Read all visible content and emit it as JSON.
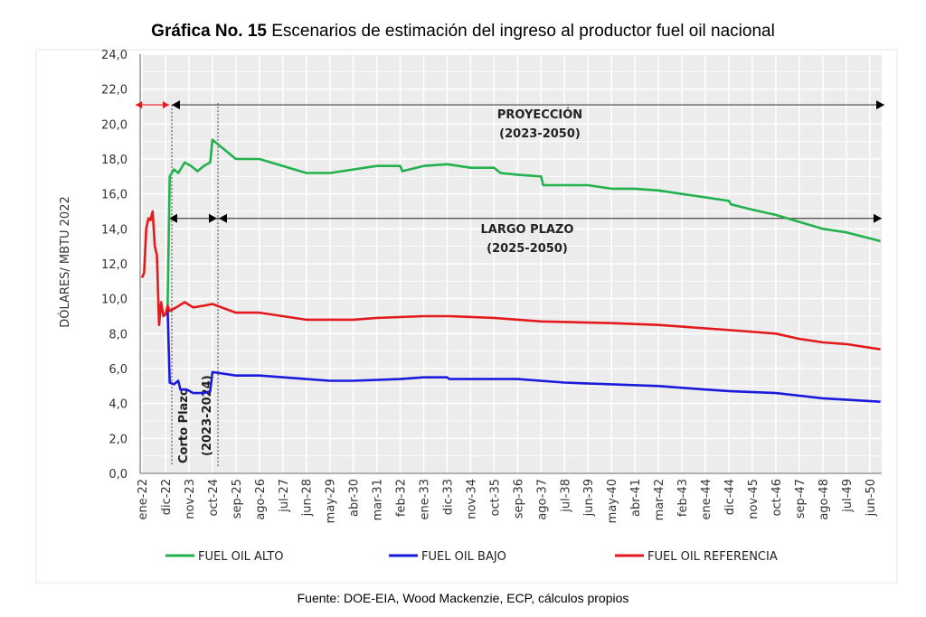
{
  "title_bold": "Gráfica No. 15",
  "title_rest": " Escenarios de estimación del ingreso al productor fuel oil nacional",
  "footer": "Fuente: DOE-EIA, Wood Mackenzie, ECP, cálculos propios",
  "chart_data": {
    "type": "line",
    "ylabel": "DÓLARES/ MBTU 2022",
    "ylim": [
      0,
      24
    ],
    "yticks": [
      "0,0",
      "2,0",
      "4,0",
      "6,0",
      "8,0",
      "10,0",
      "12,0",
      "14,0",
      "16,0",
      "18,0",
      "20,0",
      "22,0",
      "24,0"
    ],
    "xticks": [
      "ene-22",
      "dic-22",
      "nov-23",
      "oct-24",
      "sep-25",
      "ago-26",
      "jul-27",
      "jun-28",
      "may-29",
      "abr-30",
      "mar-31",
      "feb-32",
      "ene-33",
      "dic-33",
      "nov-34",
      "oct-35",
      "sep-36",
      "ago-37",
      "jul-38",
      "jun-39",
      "may-40",
      "abr-41",
      "mar-42",
      "feb-43",
      "ene-44",
      "dic-44",
      "nov-45",
      "oct-46",
      "sep-47",
      "ago-48",
      "jul-49",
      "jun-50"
    ],
    "grid": true,
    "legend_position": "bottom",
    "annotations": {
      "proyeccion": "PROYECCIÓN",
      "proyeccion_range": "(2023-2050)",
      "largo": "LARGO PLAZO",
      "largo_range": "(2025-2050)",
      "corto": "Corto Plazo",
      "corto_range": "(2023-2024)"
    },
    "series": [
      {
        "name": "FUEL OIL ALTO",
        "color": "#22b14c",
        "points": [
          [
            "2023-01",
            9.5
          ],
          [
            "2023-02",
            17.0
          ],
          [
            "2023-04",
            17.4
          ],
          [
            "2023-06",
            17.2
          ],
          [
            "2023-09",
            17.8
          ],
          [
            "2023-12",
            17.6
          ],
          [
            "2024-03",
            17.3
          ],
          [
            "2024-06",
            17.6
          ],
          [
            "2024-09",
            17.8
          ],
          [
            "2024-10",
            19.1
          ],
          [
            "2025-09",
            18.0
          ],
          [
            "2026-08",
            18.0
          ],
          [
            "2027-07",
            17.6
          ],
          [
            "2028-06",
            17.2
          ],
          [
            "2029-05",
            17.2
          ],
          [
            "2030-04",
            17.4
          ],
          [
            "2031-03",
            17.6
          ],
          [
            "2032-02",
            17.6
          ],
          [
            "2032-03",
            17.3
          ],
          [
            "2033-01",
            17.6
          ],
          [
            "2033-12",
            17.7
          ],
          [
            "2034-11",
            17.5
          ],
          [
            "2035-10",
            17.5
          ],
          [
            "2036-01",
            17.2
          ],
          [
            "2036-09",
            17.1
          ],
          [
            "2037-08",
            17.0
          ],
          [
            "2037-09",
            16.5
          ],
          [
            "2039-06",
            16.5
          ],
          [
            "2040-05",
            16.3
          ],
          [
            "2041-04",
            16.3
          ],
          [
            "2042-03",
            16.2
          ],
          [
            "2043-02",
            16.0
          ],
          [
            "2044-12",
            15.6
          ],
          [
            "2045-01",
            15.4
          ],
          [
            "2045-11",
            15.1
          ],
          [
            "2046-10",
            14.8
          ],
          [
            "2047-09",
            14.4
          ],
          [
            "2048-08",
            14.0
          ],
          [
            "2049-07",
            13.8
          ],
          [
            "2050-11",
            13.3
          ]
        ]
      },
      {
        "name": "FUEL OIL BAJO",
        "color": "#1a1adc",
        "points": [
          [
            "2023-01",
            9.5
          ],
          [
            "2023-02",
            5.2
          ],
          [
            "2023-04",
            5.1
          ],
          [
            "2023-06",
            5.3
          ],
          [
            "2023-07",
            4.8
          ],
          [
            "2023-10",
            4.8
          ],
          [
            "2024-01",
            4.6
          ],
          [
            "2024-06",
            4.6
          ],
          [
            "2024-09",
            4.7
          ],
          [
            "2024-10",
            5.8
          ],
          [
            "2025-09",
            5.6
          ],
          [
            "2026-08",
            5.6
          ],
          [
            "2028-06",
            5.4
          ],
          [
            "2029-05",
            5.3
          ],
          [
            "2030-04",
            5.3
          ],
          [
            "2032-02",
            5.4
          ],
          [
            "2033-01",
            5.5
          ],
          [
            "2033-12",
            5.5
          ],
          [
            "2034-01",
            5.4
          ],
          [
            "2036-09",
            5.4
          ],
          [
            "2038-07",
            5.2
          ],
          [
            "2040-05",
            5.1
          ],
          [
            "2042-03",
            5.0
          ],
          [
            "2044-01",
            4.8
          ],
          [
            "2045-01",
            4.7
          ],
          [
            "2046-10",
            4.6
          ],
          [
            "2048-08",
            4.3
          ],
          [
            "2050-11",
            4.1
          ]
        ]
      },
      {
        "name": "FUEL OIL REFERENCIA",
        "color": "#e31a1c",
        "points": [
          [
            "2022-01",
            11.2
          ],
          [
            "2022-02",
            11.5
          ],
          [
            "2022-03",
            14.0
          ],
          [
            "2022-04",
            14.6
          ],
          [
            "2022-05",
            14.5
          ],
          [
            "2022-06",
            15.0
          ],
          [
            "2022-07",
            13.0
          ],
          [
            "2022-08",
            12.5
          ],
          [
            "2022-09",
            8.5
          ],
          [
            "2022-10",
            9.8
          ],
          [
            "2022-11",
            9.0
          ],
          [
            "2022-12",
            9.1
          ],
          [
            "2023-01",
            9.6
          ],
          [
            "2023-02",
            9.3
          ],
          [
            "2023-05",
            9.5
          ],
          [
            "2023-09",
            9.8
          ],
          [
            "2024-01",
            9.5
          ],
          [
            "2024-06",
            9.6
          ],
          [
            "2024-10",
            9.7
          ],
          [
            "2025-09",
            9.2
          ],
          [
            "2026-08",
            9.2
          ],
          [
            "2028-06",
            8.8
          ],
          [
            "2030-04",
            8.8
          ],
          [
            "2031-03",
            8.9
          ],
          [
            "2033-01",
            9.0
          ],
          [
            "2034-01",
            9.0
          ],
          [
            "2035-10",
            8.9
          ],
          [
            "2037-08",
            8.7
          ],
          [
            "2040-05",
            8.6
          ],
          [
            "2042-03",
            8.5
          ],
          [
            "2045-01",
            8.2
          ],
          [
            "2046-10",
            8.0
          ],
          [
            "2047-09",
            7.7
          ],
          [
            "2048-08",
            7.5
          ],
          [
            "2049-07",
            7.4
          ],
          [
            "2050-11",
            7.1
          ]
        ]
      }
    ]
  }
}
